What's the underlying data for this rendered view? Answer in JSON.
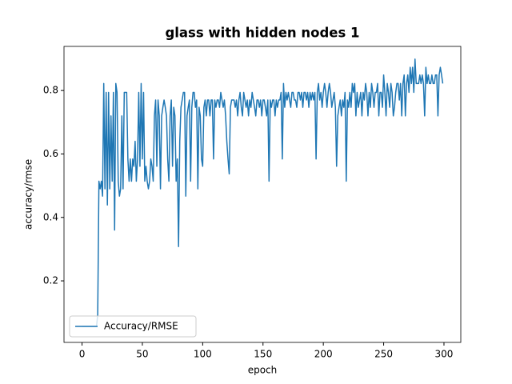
{
  "chart_data": {
    "type": "line",
    "title": "glass with hidden nodes 1",
    "x_label": "epoch",
    "y_label": "accuracy/rmse",
    "legend": "lower left",
    "xlim": [
      -14.95,
      313.95
    ],
    "ylim": [
      0.006,
      0.939
    ],
    "xticks": [
      0,
      50,
      100,
      150,
      200,
      250,
      300
    ],
    "yticks": [
      0.2,
      0.4,
      0.6,
      0.8
    ],
    "x": [
      0,
      1,
      2,
      3,
      4,
      5,
      6,
      7,
      8,
      9,
      10,
      11,
      12,
      13,
      14,
      15,
      16,
      17,
      18,
      19,
      20,
      21,
      22,
      23,
      24,
      25,
      26,
      27,
      28,
      29,
      30,
      31,
      32,
      33,
      34,
      35,
      36,
      37,
      38,
      39,
      40,
      41,
      42,
      43,
      44,
      45,
      46,
      47,
      48,
      49,
      50,
      51,
      52,
      53,
      54,
      55,
      56,
      57,
      58,
      59,
      60,
      61,
      62,
      63,
      64,
      65,
      66,
      67,
      68,
      69,
      70,
      71,
      72,
      73,
      74,
      75,
      76,
      77,
      78,
      79,
      80,
      81,
      82,
      83,
      84,
      85,
      86,
      87,
      88,
      89,
      90,
      91,
      92,
      93,
      94,
      95,
      96,
      97,
      98,
      99,
      100,
      101,
      102,
      103,
      104,
      105,
      106,
      107,
      108,
      109,
      110,
      111,
      112,
      113,
      114,
      115,
      116,
      117,
      118,
      119,
      120,
      121,
      122,
      123,
      124,
      125,
      126,
      127,
      128,
      129,
      130,
      131,
      132,
      133,
      134,
      135,
      136,
      137,
      138,
      139,
      140,
      141,
      142,
      143,
      144,
      145,
      146,
      147,
      148,
      149,
      150,
      151,
      152,
      153,
      154,
      155,
      156,
      157,
      158,
      159,
      160,
      161,
      162,
      163,
      164,
      165,
      166,
      167,
      168,
      169,
      170,
      171,
      172,
      173,
      174,
      175,
      176,
      177,
      178,
      179,
      180,
      181,
      182,
      183,
      184,
      185,
      186,
      187,
      188,
      189,
      190,
      191,
      192,
      193,
      194,
      195,
      196,
      197,
      198,
      199,
      200,
      201,
      202,
      203,
      204,
      205,
      206,
      207,
      208,
      209,
      210,
      211,
      212,
      213,
      214,
      215,
      216,
      217,
      218,
      219,
      220,
      221,
      222,
      223,
      224,
      225,
      226,
      227,
      228,
      229,
      230,
      231,
      232,
      233,
      234,
      235,
      236,
      237,
      238,
      239,
      240,
      241,
      242,
      243,
      244,
      245,
      246,
      247,
      248,
      249,
      250,
      251,
      252,
      253,
      254,
      255,
      256,
      257,
      258,
      259,
      260,
      261,
      262,
      263,
      264,
      265,
      266,
      267,
      268,
      269,
      270,
      271,
      272,
      273,
      274,
      275,
      276,
      277,
      278,
      279,
      280,
      281,
      282,
      283,
      284,
      285,
      286,
      287,
      288,
      289,
      290,
      291,
      292,
      293,
      294,
      295,
      296,
      297,
      298,
      299
    ],
    "series": [
      {
        "name": "Accuracy/RMSE",
        "color": "#1f77b4",
        "values": [
          0.056,
          0.056,
          0.056,
          0.056,
          0.056,
          0.056,
          0.056,
          0.056,
          0.056,
          0.056,
          0.056,
          0.056,
          0.056,
          0.093,
          0.514,
          0.49,
          0.514,
          0.467,
          0.822,
          0.49,
          0.794,
          0.439,
          0.794,
          0.49,
          0.72,
          0.514,
          0.794,
          0.36,
          0.822,
          0.794,
          0.514,
          0.467,
          0.49,
          0.72,
          0.49,
          0.794,
          0.794,
          0.794,
          0.584,
          0.514,
          0.584,
          0.514,
          0.584,
          0.561,
          0.64,
          0.514,
          0.584,
          0.794,
          0.561,
          0.822,
          0.584,
          0.794,
          0.514,
          0.561,
          0.514,
          0.49,
          0.514,
          0.584,
          0.561,
          0.514,
          0.72,
          0.77,
          0.561,
          0.77,
          0.72,
          0.49,
          0.72,
          0.747,
          0.77,
          0.747,
          0.72,
          0.584,
          0.514,
          0.72,
          0.77,
          0.561,
          0.747,
          0.72,
          0.514,
          0.584,
          0.308,
          0.64,
          0.747,
          0.77,
          0.794,
          0.794,
          0.467,
          0.72,
          0.747,
          0.77,
          0.514,
          0.747,
          0.794,
          0.794,
          0.747,
          0.77,
          0.49,
          0.747,
          0.72,
          0.584,
          0.561,
          0.747,
          0.77,
          0.72,
          0.77,
          0.77,
          0.72,
          0.77,
          0.77,
          0.584,
          0.77,
          0.747,
          0.77,
          0.77,
          0.747,
          0.794,
          0.77,
          0.747,
          0.77,
          0.72,
          0.64,
          0.584,
          0.537,
          0.747,
          0.77,
          0.77,
          0.77,
          0.747,
          0.77,
          0.72,
          0.77,
          0.794,
          0.747,
          0.72,
          0.794,
          0.77,
          0.747,
          0.77,
          0.72,
          0.77,
          0.747,
          0.794,
          0.77,
          0.747,
          0.72,
          0.77,
          0.77,
          0.747,
          0.77,
          0.72,
          0.77,
          0.77,
          0.747,
          0.72,
          0.77,
          0.514,
          0.77,
          0.747,
          0.77,
          0.77,
          0.72,
          0.77,
          0.747,
          0.77,
          0.77,
          0.794,
          0.584,
          0.822,
          0.747,
          0.794,
          0.77,
          0.794,
          0.77,
          0.747,
          0.794,
          0.794,
          0.77,
          0.77,
          0.747,
          0.794,
          0.794,
          0.77,
          0.794,
          0.747,
          0.794,
          0.794,
          0.77,
          0.794,
          0.747,
          0.794,
          0.77,
          0.794,
          0.77,
          0.794,
          0.584,
          0.794,
          0.822,
          0.77,
          0.794,
          0.747,
          0.794,
          0.822,
          0.794,
          0.747,
          0.794,
          0.822,
          0.794,
          0.747,
          0.77,
          0.794,
          0.747,
          0.561,
          0.72,
          0.747,
          0.77,
          0.72,
          0.77,
          0.747,
          0.794,
          0.514,
          0.77,
          0.747,
          0.794,
          0.747,
          0.822,
          0.794,
          0.822,
          0.72,
          0.794,
          0.747,
          0.77,
          0.794,
          0.72,
          0.794,
          0.77,
          0.822,
          0.794,
          0.72,
          0.794,
          0.747,
          0.822,
          0.794,
          0.747,
          0.794,
          0.794,
          0.822,
          0.72,
          0.794,
          0.794,
          0.747,
          0.849,
          0.794,
          0.72,
          0.822,
          0.794,
          0.747,
          0.822,
          0.794,
          0.72,
          0.747,
          0.794,
          0.822,
          0.822,
          0.77,
          0.822,
          0.72,
          0.822,
          0.849,
          0.72,
          0.822,
          0.849,
          0.794,
          0.873,
          0.822,
          0.873,
          0.794,
          0.899,
          0.822,
          0.822,
          0.822,
          0.849,
          0.822,
          0.849,
          0.822,
          0.72,
          0.873,
          0.822,
          0.849,
          0.822,
          0.822,
          0.849,
          0.822,
          0.822,
          0.849,
          0.849,
          0.72,
          0.849,
          0.873,
          0.849,
          0.822
        ]
      }
    ]
  }
}
